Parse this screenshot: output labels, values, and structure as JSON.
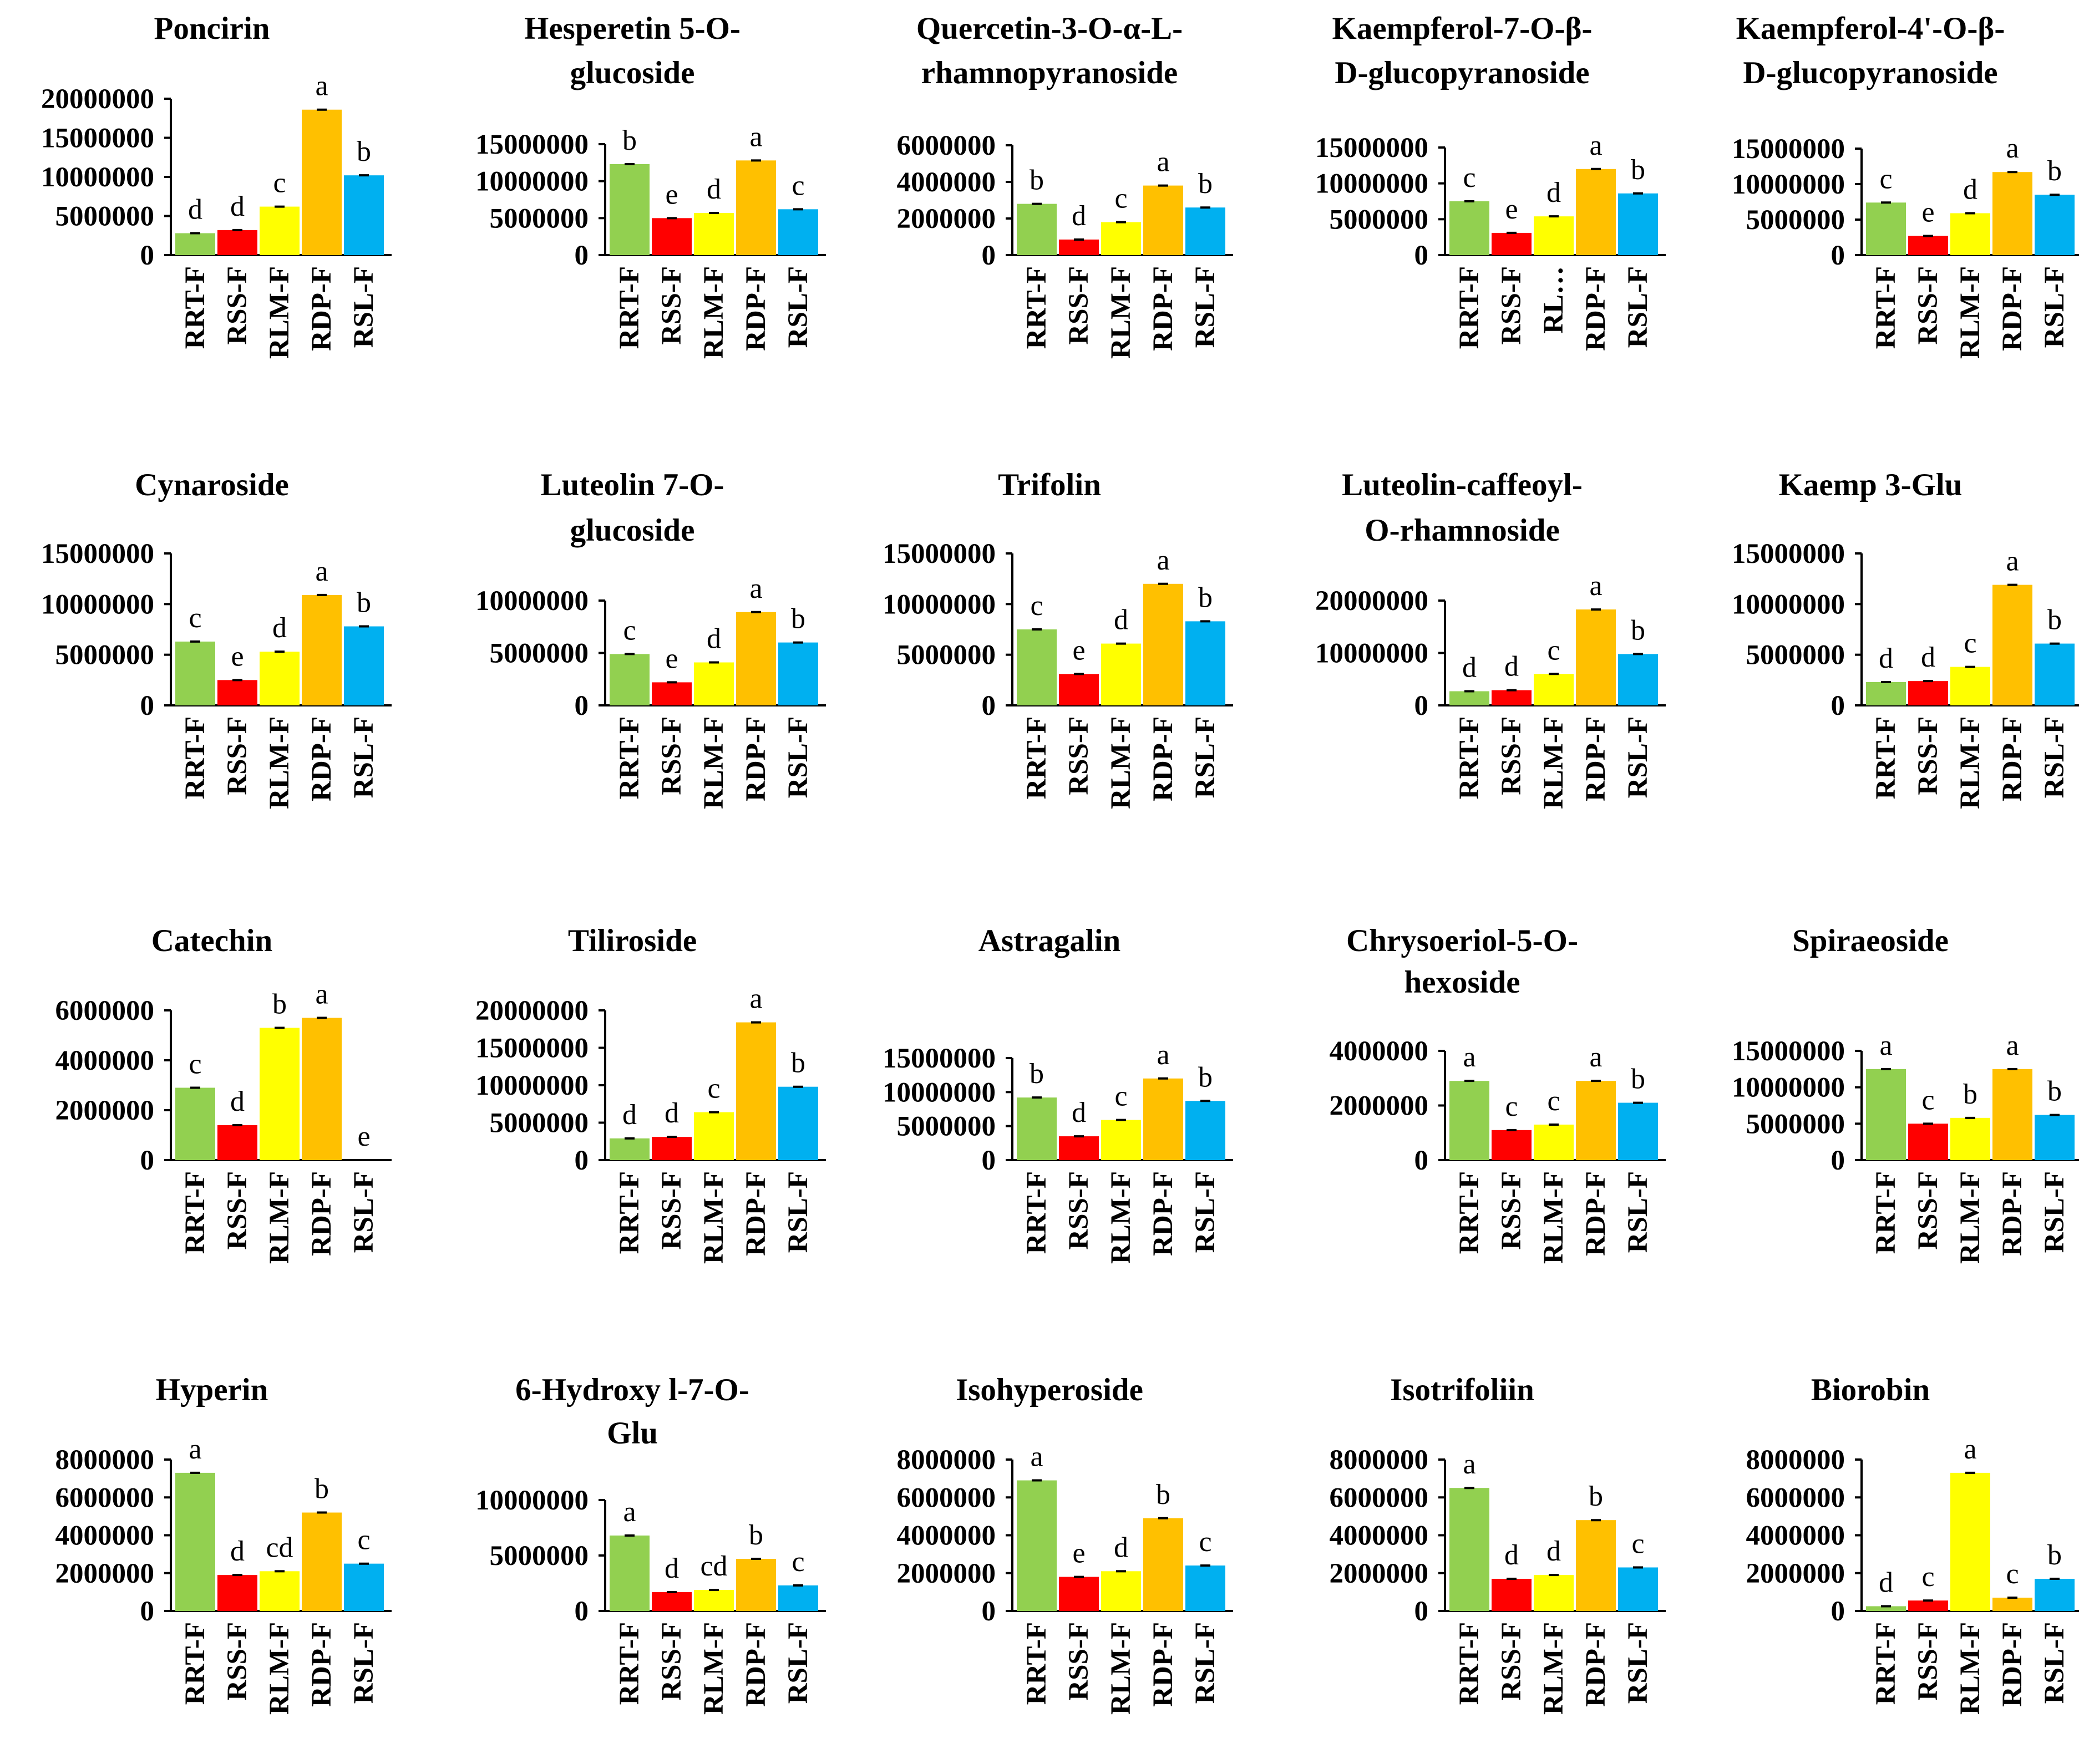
{
  "colors": {
    "RRT-F": "#92D050",
    "RSS-F": "#FF0000",
    "RLM-F": "#FFFF00",
    "RDP-F": "#FFC000",
    "RSL-F": "#00B0F0"
  },
  "chart_data": [
    {
      "type": "bar",
      "title": [
        "Poncirin"
      ],
      "categories": [
        "RRT-F",
        "RSS-F",
        "RLM-F",
        "RDP-F",
        "RSL-F"
      ],
      "values": [
        2800000,
        3200000,
        6200000,
        18600000,
        10200000
      ],
      "labels": [
        "d",
        "d",
        "c",
        "a",
        "b"
      ],
      "ticks": [
        "20000000",
        "15000000",
        "10000000",
        "5000000",
        "0"
      ],
      "ylim": [
        0,
        20000000
      ]
    },
    {
      "type": "bar",
      "title": [
        "Hesperetin 5-O-",
        "glucoside"
      ],
      "categories": [
        "RRT-F",
        "RSS-F",
        "RLM-F",
        "RDP-F",
        "RSL-F"
      ],
      "values": [
        12300000,
        5000000,
        5700000,
        12800000,
        6200000
      ],
      "labels": [
        "b",
        "e",
        "d",
        "a",
        "c"
      ],
      "ticks": [
        "15000000",
        "10000000",
        "5000000",
        "0"
      ],
      "ylim": [
        0,
        15000000
      ]
    },
    {
      "type": "bar",
      "title": [
        "Quercetin-3-O-α-L-",
        "rhamnopyranoside"
      ],
      "categories": [
        "RRT-F",
        "RSS-F",
        "RLM-F",
        "RDP-F",
        "RSL-F"
      ],
      "values": [
        2800000,
        850000,
        1800000,
        3800000,
        2600000
      ],
      "labels": [
        "b",
        "d",
        "c",
        "a",
        "b"
      ],
      "ticks": [
        "6000000",
        "4000000",
        "2000000",
        "0"
      ],
      "ylim": [
        0,
        6000000
      ]
    },
    {
      "type": "bar",
      "title": [
        "Kaempferol-7-O-β-",
        "D-glucopyranoside"
      ],
      "categories": [
        "RRT-F",
        "RSS-F",
        "RL…",
        "RDP-F",
        "RSL-F"
      ],
      "values": [
        7500000,
        3100000,
        5400000,
        12000000,
        8600000
      ],
      "labels": [
        "c",
        "e",
        "d",
        "a",
        "b"
      ],
      "ticks": [
        "15000000",
        "10000000",
        "5000000",
        "0"
      ],
      "ylim": [
        0,
        15000000
      ]
    },
    {
      "type": "bar",
      "title": [
        "Kaempferol-4'-O-β-",
        "D-glucopyranoside"
      ],
      "categories": [
        "RRT-F",
        "RSS-F",
        "RLM-F",
        "RDP-F",
        "RSL-F"
      ],
      "values": [
        7400000,
        2700000,
        5900000,
        11700000,
        8500000
      ],
      "labels": [
        "c",
        "e",
        "d",
        "a",
        "b"
      ],
      "ticks": [
        "15000000",
        "10000000",
        "5000000",
        "0"
      ],
      "ylim": [
        0,
        15000000
      ]
    },
    {
      "type": "bar",
      "title": [
        "Cynaroside"
      ],
      "categories": [
        "RRT-F",
        "RSS-F",
        "RLM-F",
        "RDP-F",
        "RSL-F"
      ],
      "values": [
        6300000,
        2500000,
        5300000,
        10900000,
        7800000
      ],
      "labels": [
        "c",
        "e",
        "d",
        "a",
        "b"
      ],
      "ticks": [
        "15000000",
        "10000000",
        "5000000",
        "0"
      ],
      "ylim": [
        0,
        15000000
      ]
    },
    {
      "type": "bar",
      "title": [
        "Luteolin 7-O-",
        "glucoside"
      ],
      "categories": [
        "RRT-F",
        "RSS-F",
        "RLM-F",
        "RDP-F",
        "RSL-F"
      ],
      "values": [
        4900000,
        2200000,
        4100000,
        8900000,
        6000000
      ],
      "labels": [
        "c",
        "e",
        "d",
        "a",
        "b"
      ],
      "ticks": [
        "10000000",
        "5000000",
        "0"
      ],
      "ylim": [
        0,
        10000000
      ]
    },
    {
      "type": "bar",
      "title": [
        "Trifolin"
      ],
      "categories": [
        "RRT-F",
        "RSS-F",
        "RLM-F",
        "RDP-F",
        "RSL-F"
      ],
      "values": [
        7500000,
        3100000,
        6100000,
        12000000,
        8300000
      ],
      "labels": [
        "c",
        "e",
        "d",
        "a",
        "b"
      ],
      "ticks": [
        "15000000",
        "10000000",
        "5000000",
        "0"
      ],
      "ylim": [
        0,
        15000000
      ]
    },
    {
      "type": "bar",
      "title": [
        "Luteolin-caffeoyl-",
        "O-rhamnoside"
      ],
      "categories": [
        "RRT-F",
        "RSS-F",
        "RLM-F",
        "RDP-F",
        "RSL-F"
      ],
      "values": [
        2700000,
        2900000,
        6000000,
        18300000,
        9800000
      ],
      "labels": [
        "d",
        "d",
        "c",
        "a",
        "b"
      ],
      "ticks": [
        "20000000",
        "10000000",
        "0"
      ],
      "ylim": [
        0,
        20000000
      ]
    },
    {
      "type": "bar",
      "title": [
        "Kaemp 3-Glu"
      ],
      "categories": [
        "RRT-F",
        "RSS-F",
        "RLM-F",
        "RDP-F",
        "RSL-F"
      ],
      "values": [
        2300000,
        2400000,
        3800000,
        11900000,
        6100000
      ],
      "labels": [
        "d",
        "d",
        "c",
        "a",
        "b"
      ],
      "ticks": [
        "15000000",
        "10000000",
        "5000000",
        "0"
      ],
      "ylim": [
        0,
        15000000
      ]
    },
    {
      "type": "bar",
      "title": [
        "Catechin"
      ],
      "categories": [
        "RRT-F",
        "RSS-F",
        "RLM-F",
        "RDP-F",
        "RSL-F"
      ],
      "values": [
        2900000,
        1400000,
        5300000,
        5700000,
        0
      ],
      "labels": [
        "c",
        "d",
        "b",
        "a",
        "e"
      ],
      "ticks": [
        "6000000",
        "4000000",
        "2000000",
        "0"
      ],
      "ylim": [
        0,
        6000000
      ]
    },
    {
      "type": "bar",
      "title": [
        "Tiliroside"
      ],
      "categories": [
        "RRT-F",
        "RSS-F",
        "RLM-F",
        "RDP-F",
        "RSL-F"
      ],
      "values": [
        2900000,
        3100000,
        6400000,
        18400000,
        9800000
      ],
      "labels": [
        "d",
        "d",
        "c",
        "a",
        "b"
      ],
      "ticks": [
        "20000000",
        "15000000",
        "10000000",
        "5000000",
        "0"
      ],
      "ylim": [
        0,
        20000000
      ]
    },
    {
      "type": "bar",
      "title": [
        "Astragalin"
      ],
      "categories": [
        "RRT-F",
        "RSS-F",
        "RLM-F",
        "RDP-F",
        "RSL-F"
      ],
      "values": [
        9200000,
        3500000,
        5900000,
        12000000,
        8700000
      ],
      "labels": [
        "b",
        "d",
        "c",
        "a",
        "b"
      ],
      "ticks": [
        "15000000",
        "10000000",
        "5000000",
        "0"
      ],
      "ylim": [
        0,
        15000000
      ]
    },
    {
      "type": "bar",
      "title": [
        "Chrysoeriol-5-O-",
        "hexoside"
      ],
      "categories": [
        "RRT-F",
        "RSS-F",
        "RLM-F",
        "RDP-F",
        "RSL-F"
      ],
      "values": [
        2900000,
        1100000,
        1300000,
        2900000,
        2100000
      ],
      "labels": [
        "a",
        "c",
        "c",
        "a",
        "b"
      ],
      "ticks": [
        "4000000",
        "2000000",
        "0"
      ],
      "ylim": [
        0,
        4000000
      ]
    },
    {
      "type": "bar",
      "title": [
        "Spiraeoside"
      ],
      "categories": [
        "RRT-F",
        "RSS-F",
        "RLM-F",
        "RDP-F",
        "RSL-F"
      ],
      "values": [
        12500000,
        5000000,
        5800000,
        12500000,
        6200000
      ],
      "labels": [
        "a",
        "c",
        "b",
        "a",
        "b"
      ],
      "ticks": [
        "15000000",
        "10000000",
        "5000000",
        "0"
      ],
      "ylim": [
        0,
        15000000
      ]
    },
    {
      "type": "bar",
      "title": [
        "Hyperin"
      ],
      "categories": [
        "RRT-F",
        "RSS-F",
        "RLM-F",
        "RDP-F",
        "RSL-F"
      ],
      "values": [
        7300000,
        1900000,
        2100000,
        5200000,
        2500000
      ],
      "labels": [
        "a",
        "d",
        "cd",
        "b",
        "c"
      ],
      "ticks": [
        "8000000",
        "6000000",
        "4000000",
        "2000000",
        "0"
      ],
      "ylim": [
        0,
        8000000
      ]
    },
    {
      "type": "bar",
      "title": [
        "6-Hydroxy l-7-O-",
        "Glu"
      ],
      "categories": [
        "RRT-F",
        "RSS-F",
        "RLM-F",
        "RDP-F",
        "RSL-F"
      ],
      "values": [
        6800000,
        1700000,
        1900000,
        4700000,
        2300000
      ],
      "labels": [
        "a",
        "d",
        "cd",
        "b",
        "c"
      ],
      "ticks": [
        "10000000",
        "5000000",
        "0"
      ],
      "ylim": [
        0,
        10000000
      ]
    },
    {
      "type": "bar",
      "title": [
        "Isohyperoside"
      ],
      "categories": [
        "RRT-F",
        "RSS-F",
        "RLM-F",
        "RDP-F",
        "RSL-F"
      ],
      "values": [
        6900000,
        1800000,
        2100000,
        4900000,
        2400000
      ],
      "labels": [
        "a",
        "e",
        "d",
        "b",
        "c"
      ],
      "ticks": [
        "8000000",
        "6000000",
        "4000000",
        "2000000",
        "0"
      ],
      "ylim": [
        0,
        8000000
      ]
    },
    {
      "type": "bar",
      "title": [
        "Isotrifoliin"
      ],
      "categories": [
        "RRT-F",
        "RSS-F",
        "RLM-F",
        "RDP-F",
        "RSL-F"
      ],
      "values": [
        6500000,
        1700000,
        1900000,
        4800000,
        2300000
      ],
      "labels": [
        "a",
        "d",
        "d",
        "b",
        "c"
      ],
      "ticks": [
        "8000000",
        "6000000",
        "4000000",
        "2000000",
        "0"
      ],
      "ylim": [
        0,
        8000000
      ]
    },
    {
      "type": "bar",
      "title": [
        "Biorobin"
      ],
      "categories": [
        "RRT-F",
        "RSS-F",
        "RLM-F",
        "RDP-F",
        "RSL-F"
      ],
      "values": [
        250000,
        550000,
        7300000,
        700000,
        1700000
      ],
      "labels": [
        "d",
        "c",
        "a",
        "c",
        "b"
      ],
      "ticks": [
        "8000000",
        "6000000",
        "4000000",
        "2000000",
        "0"
      ],
      "ylim": [
        0,
        8000000
      ]
    }
  ]
}
